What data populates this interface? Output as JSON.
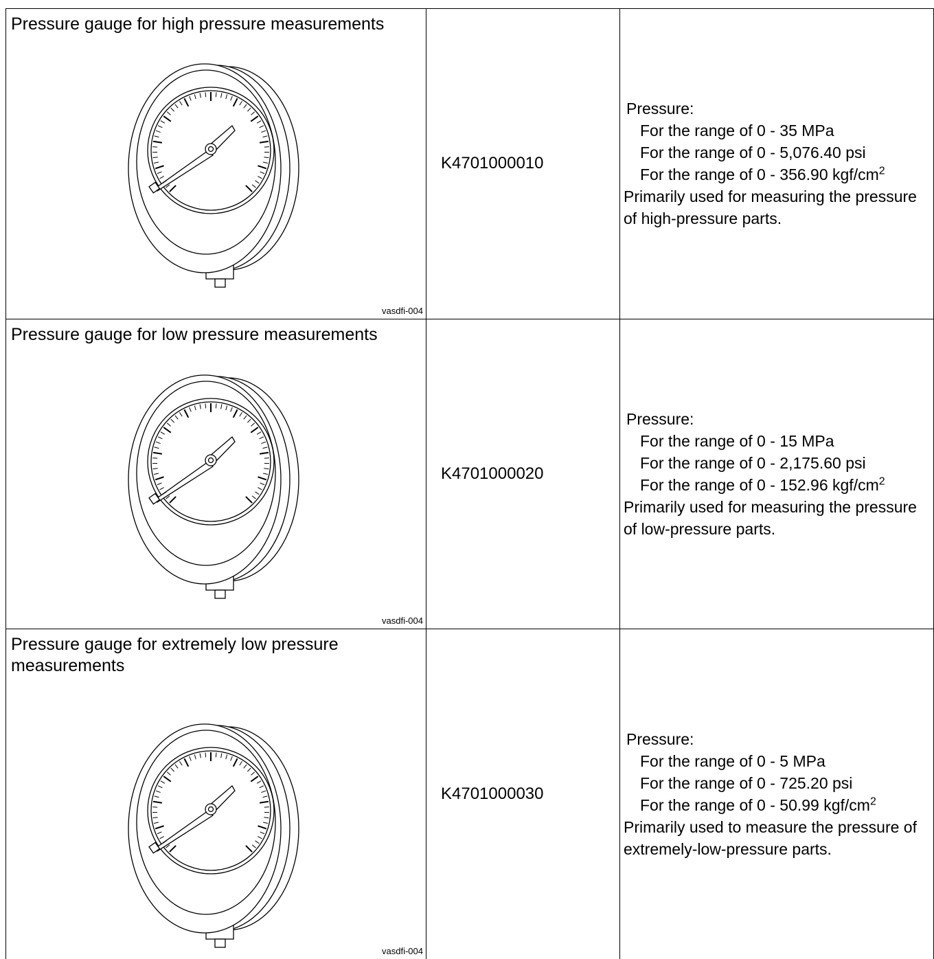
{
  "table": {
    "rows": [
      {
        "name": "Pressure gauge for high pressure measurements",
        "image_code": "vasdfi-004",
        "part_number": "K4701000010",
        "description": {
          "label": "Pressure:",
          "ranges": [
            {
              "text": "For the range of 0 - 35 MPa"
            },
            {
              "text": "For the range of 0 - 5,076.40 psi"
            },
            {
              "text": "For the range of 0 - 356.90 kgf/cm",
              "sup": "2"
            }
          ],
          "note": "Primarily used for measuring the pressure of high-pressure parts."
        }
      },
      {
        "name": "Pressure gauge for low pressure measurements",
        "image_code": "vasdfi-004",
        "part_number": "K4701000020",
        "description": {
          "label": "Pressure:",
          "ranges": [
            {
              "text": "For the range of 0 - 15 MPa"
            },
            {
              "text": "For the range of 0 - 2,175.60 psi"
            },
            {
              "text": "For the range of 0 - 152.96 kgf/cm",
              "sup": "2"
            }
          ],
          "note": "Primarily used for measuring the pressure of low-pressure parts."
        }
      },
      {
        "name": "Pressure gauge for extremely low pressure measurements",
        "image_code": "vasdfi-004",
        "part_number": "K4701000030",
        "description": {
          "label": "Pressure:",
          "ranges": [
            {
              "text": "For the range of 0 - 5 MPa"
            },
            {
              "text": "For the range of 0 - 725.20 psi"
            },
            {
              "text": "For the range of 0 - 50.99 kgf/cm",
              "sup": "2"
            }
          ],
          "note": "Primarily used to measure the pressure of extremely-low-pressure parts."
        }
      }
    ]
  }
}
